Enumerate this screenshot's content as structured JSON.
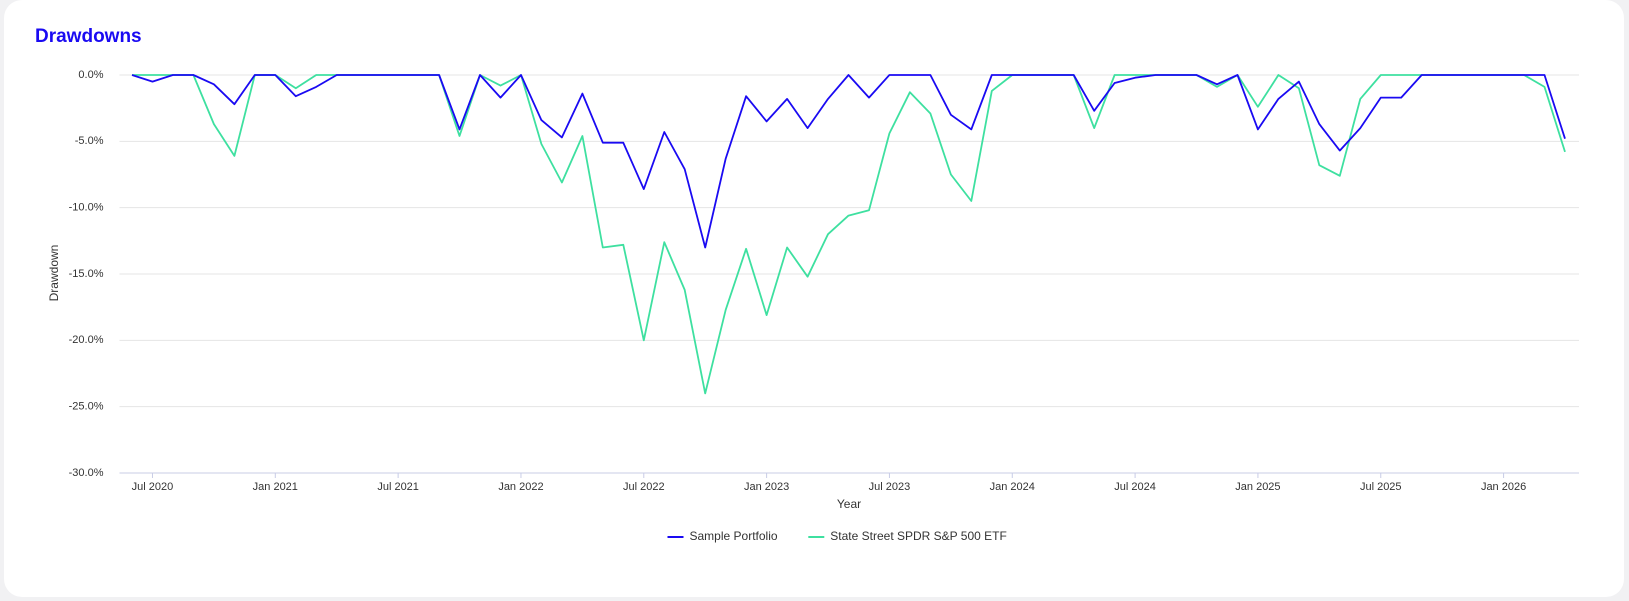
{
  "chart_data": {
    "type": "line",
    "title": "Drawdowns",
    "x_label": "Year",
    "y_label": "Drawdown",
    "x": [
      "2020-06",
      "2020-07",
      "2020-08",
      "2020-09",
      "2020-10",
      "2020-11",
      "2020-12",
      "2021-01",
      "2021-02",
      "2021-03",
      "2021-04",
      "2021-05",
      "2021-06",
      "2021-07",
      "2021-08",
      "2021-09",
      "2021-10",
      "2021-11",
      "2021-12",
      "2022-01",
      "2022-02",
      "2022-03",
      "2022-04",
      "2022-05",
      "2022-06",
      "2022-07",
      "2022-08",
      "2022-09",
      "2022-10",
      "2022-11",
      "2022-12",
      "2023-01",
      "2023-02",
      "2023-03",
      "2023-04",
      "2023-05",
      "2023-06",
      "2023-07",
      "2023-08",
      "2023-09",
      "2023-10",
      "2023-11",
      "2023-12",
      "2024-01",
      "2024-02",
      "2024-03",
      "2024-04",
      "2024-05",
      "2024-06",
      "2024-07",
      "2024-08",
      "2024-09",
      "2024-10",
      "2024-11",
      "2024-12",
      "2025-01",
      "2025-02",
      "2025-03",
      "2025-04",
      "2025-05",
      "2025-06",
      "2025-07",
      "2025-08",
      "2025-09",
      "2025-10",
      "2025-11",
      "2025-12",
      "2026-01",
      "2026-02",
      "2026-03",
      "2026-04"
    ],
    "series": [
      {
        "name": "Sample Portfolio",
        "color": "#1a0af2",
        "values": [
          0,
          -0.5,
          0,
          0,
          -0.7,
          -2.2,
          0,
          0,
          -1.6,
          -0.9,
          0,
          0,
          0,
          0,
          0,
          0,
          -4.1,
          0,
          -1.7,
          0,
          -3.4,
          -4.7,
          -1.4,
          -5.1,
          -5.1,
          -8.6,
          -4.3,
          -7.1,
          -13.0,
          -6.3,
          -1.6,
          -3.5,
          -1.8,
          -4.0,
          -1.8,
          0,
          -1.7,
          0,
          0,
          0,
          -3.0,
          -4.1,
          0,
          0,
          0,
          0,
          0,
          -2.7,
          -0.6,
          -0.2,
          0,
          0,
          0,
          -0.7,
          0,
          -4.1,
          -1.8,
          -0.5,
          -3.7,
          -5.7,
          -4.0,
          -1.7,
          -1.7,
          0,
          0,
          0,
          0,
          0,
          0,
          0,
          -4.8
        ]
      },
      {
        "name": "State Street SPDR S&P 500 ETF",
        "color": "#3ee0a0",
        "values": [
          0,
          0,
          0,
          0,
          -3.7,
          -6.1,
          0,
          0,
          -1.0,
          0,
          0,
          0,
          0,
          0,
          0,
          0,
          -4.6,
          0,
          -0.8,
          0,
          -5.2,
          -8.1,
          -4.6,
          -13.0,
          -12.8,
          -20.0,
          -12.6,
          -16.2,
          -24.0,
          -17.7,
          -13.1,
          -18.1,
          -13.0,
          -15.2,
          -12.0,
          -10.6,
          -10.2,
          -4.4,
          -1.3,
          -2.9,
          -7.5,
          -9.5,
          -1.2,
          0,
          0,
          0,
          0,
          -4.0,
          0,
          0,
          0,
          0,
          0,
          -0.9,
          0,
          -2.4,
          0,
          -1.0,
          -6.8,
          -7.6,
          -1.8,
          0,
          0,
          0,
          0,
          0,
          0,
          0,
          0,
          -0.9,
          -5.8
        ]
      }
    ],
    "ylim": [
      -30,
      0
    ],
    "yticks": [
      {
        "value": 0,
        "label": "0.0%"
      },
      {
        "value": -5,
        "label": "-5.0%"
      },
      {
        "value": -10,
        "label": "-10.0%"
      },
      {
        "value": -15,
        "label": "-15.0%"
      },
      {
        "value": -20,
        "label": "-20.0%"
      },
      {
        "value": -25,
        "label": "-25.0%"
      },
      {
        "value": -30,
        "label": "-30.0%"
      }
    ],
    "xticks": [
      {
        "value": "2020-07",
        "label": "Jul 2020"
      },
      {
        "value": "2021-01",
        "label": "Jan 2021"
      },
      {
        "value": "2021-07",
        "label": "Jul 2021"
      },
      {
        "value": "2022-01",
        "label": "Jan 2022"
      },
      {
        "value": "2022-07",
        "label": "Jul 2022"
      },
      {
        "value": "2023-01",
        "label": "Jan 2023"
      },
      {
        "value": "2023-07",
        "label": "Jul 2023"
      },
      {
        "value": "2024-01",
        "label": "Jan 2024"
      },
      {
        "value": "2024-07",
        "label": "Jul 2024"
      },
      {
        "value": "2025-01",
        "label": "Jan 2025"
      },
      {
        "value": "2025-07",
        "label": "Jul 2025"
      },
      {
        "value": "2026-01",
        "label": "Jan 2026"
      }
    ],
    "grid": true,
    "legend": "bottom"
  }
}
